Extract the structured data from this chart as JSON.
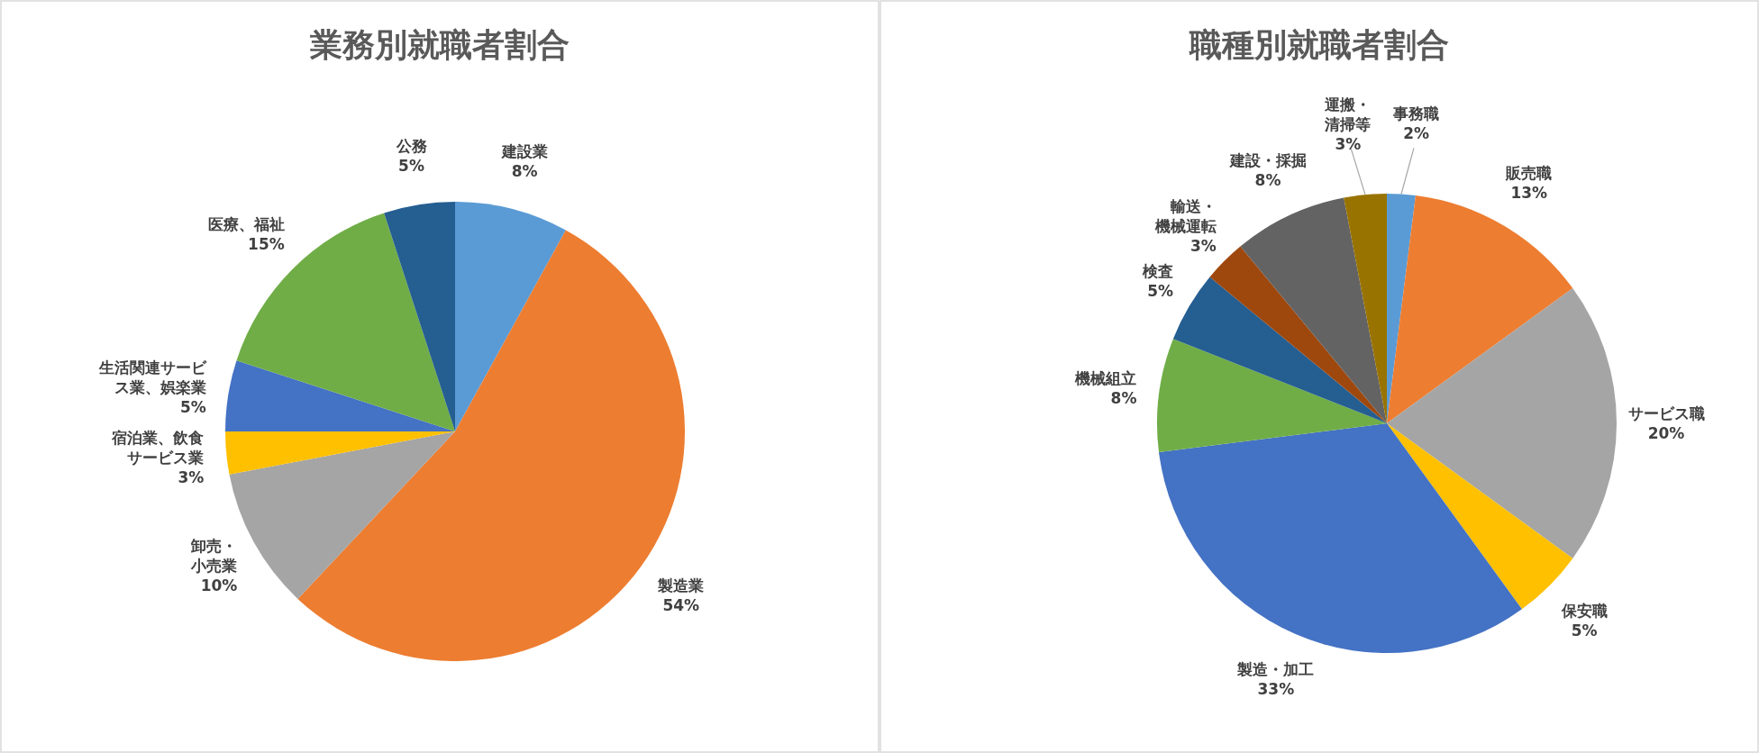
{
  "chart_data": [
    {
      "type": "pie",
      "title": "業務別就職者割合",
      "categories": [
        "建設業",
        "製造業",
        "卸売・小売業",
        "宿泊業、飲食サービス業",
        "生活関連サービス業、娯楽業",
        "医療、福祉",
        "公務"
      ],
      "values": [
        8,
        54,
        10,
        3,
        5,
        15,
        5
      ],
      "colors": [
        "#5b9bd5",
        "#ed7d31",
        "#a5a5a5",
        "#ffc000",
        "#4472c4",
        "#70ad47",
        "#255e91"
      ],
      "value_labels": [
        "8%",
        "54%",
        "10%",
        "3%",
        "5%",
        "15%",
        "5%"
      ]
    },
    {
      "type": "pie",
      "title": "職種別就職者割合",
      "categories": [
        "事務職",
        "販売職",
        "サービス職",
        "保安職",
        "製造・加工",
        "機械組立",
        "検査",
        "輸送・機械運転",
        "建設・採掘",
        "運搬・清掃等"
      ],
      "values": [
        2,
        13,
        20,
        5,
        33,
        8,
        5,
        3,
        8,
        3
      ],
      "colors": [
        "#5b9bd5",
        "#ed7d31",
        "#a5a5a5",
        "#ffc000",
        "#4472c4",
        "#70ad47",
        "#255e91",
        "#9e480e",
        "#636363",
        "#997300"
      ],
      "value_labels": [
        "2%",
        "13%",
        "20%",
        "5%",
        "33%",
        "8%",
        "5%",
        "3%",
        "8%",
        "3%"
      ]
    }
  ]
}
